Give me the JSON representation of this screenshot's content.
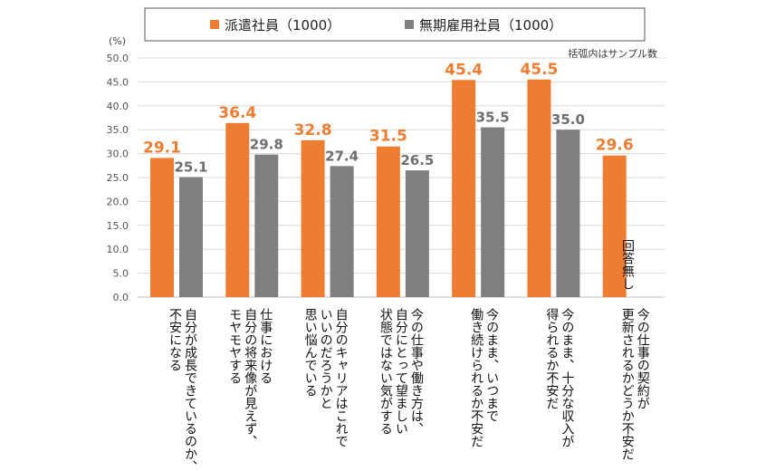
{
  "legend_note": "括弧内はサンプル数",
  "colors": {
    "series_a": "#ED7D31",
    "series_b": "#7F7F7F",
    "grid": "#d9d9d9"
  },
  "chart_data": {
    "type": "bar",
    "title": "",
    "ylabel": "(%)",
    "ylim": [
      0,
      50
    ],
    "yticks": [
      "0.0",
      "5.0",
      "10.0",
      "15.0",
      "20.0",
      "25.0",
      "30.0",
      "35.0",
      "40.0",
      "45.0",
      "50.0"
    ],
    "legend_position": "top",
    "categories": [
      [
        "自分が成長できているのか、",
        "不安になる"
      ],
      [
        "仕事における",
        "自分の将来像が見えず、",
        "モヤモヤする"
      ],
      [
        "自分のキャリアはこれで",
        "いいのだろうかと",
        "思い悩んでいる"
      ],
      [
        "今の仕事や働き方は、",
        "自分にとって望ましい",
        "状態ではない気がする"
      ],
      [
        "今のまま、いつまで",
        "働き続けられるか不安だ"
      ],
      [
        "今のまま、十分な収入が",
        "得られるか不安だ"
      ],
      [
        "今の仕事の契約が",
        "更新されるかどうか不安だ"
      ]
    ],
    "series": [
      {
        "name": "派遣社員（1000）",
        "values": [
          29.1,
          36.4,
          32.8,
          31.5,
          45.4,
          45.5,
          29.6
        ],
        "labels": [
          "29.1",
          "36.4",
          "32.8",
          "31.5",
          "45.4",
          "45.5",
          "29.6"
        ]
      },
      {
        "name": "無期雇用社員（1000）",
        "values": [
          25.1,
          29.8,
          27.4,
          26.5,
          35.5,
          35.0,
          null
        ],
        "labels": [
          "25.1",
          "29.8",
          "27.4",
          "26.5",
          "35.5",
          "35.0",
          ""
        ]
      }
    ],
    "annotations": [
      "回答無し"
    ]
  }
}
